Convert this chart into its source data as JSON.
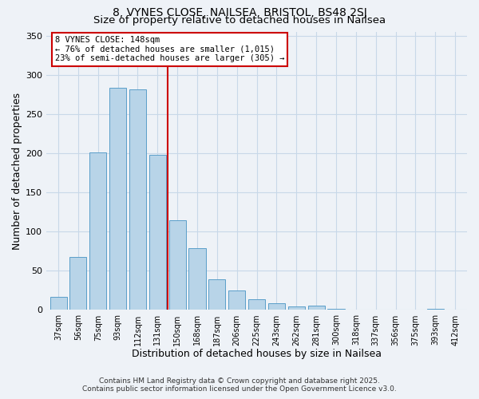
{
  "title_line1": "8, VYNES CLOSE, NAILSEA, BRISTOL, BS48 2SJ",
  "title_line2": "Size of property relative to detached houses in Nailsea",
  "xlabel": "Distribution of detached houses by size in Nailsea",
  "ylabel": "Number of detached properties",
  "bar_labels": [
    "37sqm",
    "56sqm",
    "75sqm",
    "93sqm",
    "112sqm",
    "131sqm",
    "150sqm",
    "168sqm",
    "187sqm",
    "206sqm",
    "225sqm",
    "243sqm",
    "262sqm",
    "281sqm",
    "300sqm",
    "318sqm",
    "337sqm",
    "356sqm",
    "375sqm",
    "393sqm",
    "412sqm"
  ],
  "bar_heights": [
    17,
    68,
    201,
    284,
    282,
    198,
    115,
    79,
    39,
    25,
    14,
    9,
    5,
    6,
    2,
    0,
    0,
    0,
    0,
    1,
    0
  ],
  "bar_color": "#b8d4e8",
  "bar_edge_color": "#5a9ec9",
  "vline_color": "#cc0000",
  "annotation_text_line1": "8 VYNES CLOSE: 148sqm",
  "annotation_text_line2": "← 76% of detached houses are smaller (1,015)",
  "annotation_text_line3": "23% of semi-detached houses are larger (305) →",
  "annotation_box_color": "#cc0000",
  "ylim": [
    0,
    355
  ],
  "yticks": [
    0,
    50,
    100,
    150,
    200,
    250,
    300,
    350
  ],
  "grid_color": "#c8d8e8",
  "background_color": "#eef2f7",
  "footer_line1": "Contains HM Land Registry data © Crown copyright and database right 2025.",
  "footer_line2": "Contains public sector information licensed under the Open Government Licence v3.0.",
  "title_fontsize": 10,
  "subtitle_fontsize": 9.5,
  "bar_width": 0.85
}
